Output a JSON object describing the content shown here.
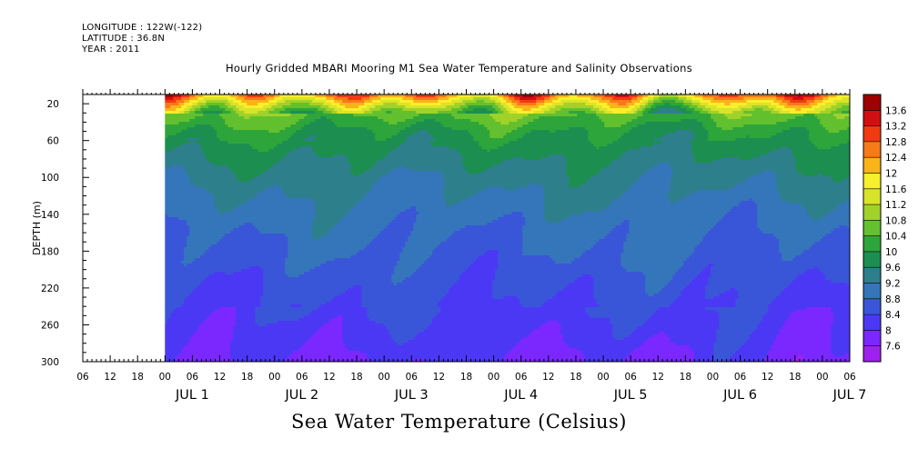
{
  "header": {
    "longitude": "LONGITUDE : 122W(-122)",
    "latitude": "LATITUDE : 36.8N",
    "year": "YEAR : 2011"
  },
  "chart_data": {
    "type": "heatmap",
    "title": "Hourly Gridded MBARI Mooring M1 Sea Water Temperature and Salinity Observations",
    "colorbar_label": "Sea Water Temperature (Celsius)",
    "ylabel": "DEPTH (m)",
    "ylim": [
      300,
      10
    ],
    "y_ticks": [
      20,
      60,
      100,
      140,
      180,
      220,
      260,
      300
    ],
    "x_range_hours": [
      -12,
      156
    ],
    "data_start_hour": 6,
    "x_hour_ticks": [
      "00",
      "06",
      "12",
      "18",
      "00",
      "06",
      "12",
      "18",
      "00",
      "06",
      "12",
      "18",
      "00",
      "06",
      "12",
      "18",
      "00",
      "06",
      "12",
      "18",
      "00",
      "06",
      "12",
      "18",
      "00",
      "06",
      "12",
      "18",
      "00",
      "06",
      "12",
      "18"
    ],
    "x_day_labels": [
      "JUL  1",
      "JUL  2",
      "JUL  3",
      "JUL  4",
      "JUL  5",
      "JUL  6",
      "JUL  7"
    ],
    "colorbar_levels": [
      7.6,
      8,
      8.4,
      8.8,
      9.2,
      9.6,
      10,
      10.4,
      10.8,
      11.2,
      11.6,
      12,
      12.4,
      12.8,
      13.2,
      13.6
    ],
    "colorbar_colors": [
      "#a020f0",
      "#7a28ff",
      "#4b38f5",
      "#3a56d8",
      "#3576ba",
      "#2e7f8c",
      "#1c8f50",
      "#2ea53a",
      "#63c02e",
      "#a0d22a",
      "#d8e42a",
      "#f7f02a",
      "#f8b418",
      "#f77a18",
      "#f03a10",
      "#d01010",
      "#a00000"
    ],
    "profile": [
      {
        "depth": 10,
        "temp": 12.6
      },
      {
        "depth": 20,
        "temp": 11.5
      },
      {
        "depth": 30,
        "temp": 10.6
      },
      {
        "depth": 50,
        "temp": 10.0
      },
      {
        "depth": 70,
        "temp": 9.7
      },
      {
        "depth": 100,
        "temp": 9.35
      },
      {
        "depth": 140,
        "temp": 9.0
      },
      {
        "depth": 180,
        "temp": 8.75
      },
      {
        "depth": 220,
        "temp": 8.5
      },
      {
        "depth": 260,
        "temp": 8.25
      },
      {
        "depth": 300,
        "temp": 7.95
      }
    ]
  }
}
